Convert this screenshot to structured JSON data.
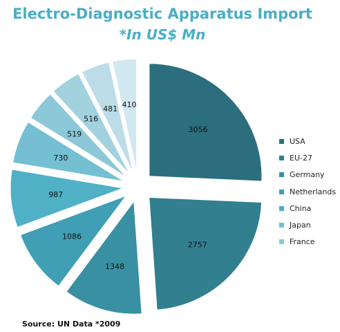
{
  "title": "Electro-Diagnostic Apparatus Import",
  "subtitle": "*In US$ Mn",
  "source": "Source: UN Data *2009",
  "chart_data": {
    "type": "pie",
    "exploded": true,
    "legend_position": "right",
    "categories": [
      "USA",
      "EU-27",
      "Germany",
      "Netherlands",
      "China",
      "Japan",
      "France",
      "",
      "",
      ""
    ],
    "values": [
      3056,
      2757,
      1348,
      1086,
      987,
      730,
      519,
      516,
      481,
      410
    ],
    "colors": [
      "#2c6e7e",
      "#317f8f",
      "#3990a2",
      "#409fb4",
      "#4fb0c6",
      "#74bfd2",
      "#8cc8d8",
      "#a3d2df",
      "#bcdde8",
      "#d2e8f0"
    ],
    "legend_entries": [
      "USA",
      "EU-27",
      "Germany",
      "Netherlands",
      "China",
      "Japan",
      "France"
    ]
  }
}
